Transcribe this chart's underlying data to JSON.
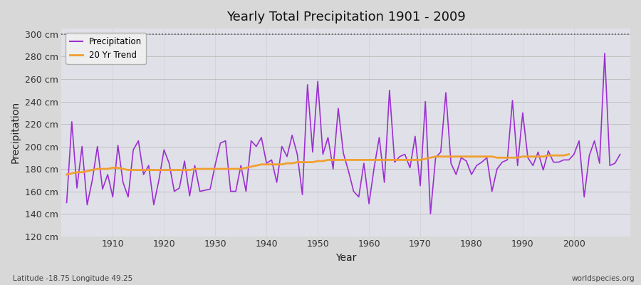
{
  "title": "Yearly Total Precipitation 1901 - 2009",
  "xlabel": "Year",
  "ylabel": "Precipitation",
  "footnote_left": "Latitude -18.75 Longitude 49.25",
  "footnote_right": "worldspecies.org",
  "precip_color": "#9b30d0",
  "trend_color": "#f0a030",
  "bg_color": "#d8d8d8",
  "plot_bg_color": "#e0e0e8",
  "ylim": [
    120,
    305
  ],
  "yticks": [
    120,
    140,
    160,
    180,
    200,
    220,
    240,
    260,
    280,
    300
  ],
  "xticks": [
    1910,
    1920,
    1930,
    1940,
    1950,
    1960,
    1970,
    1980,
    1990,
    2000
  ],
  "years": [
    1901,
    1902,
    1903,
    1904,
    1905,
    1906,
    1907,
    1908,
    1909,
    1910,
    1911,
    1912,
    1913,
    1914,
    1915,
    1916,
    1917,
    1918,
    1919,
    1920,
    1921,
    1922,
    1923,
    1924,
    1925,
    1926,
    1927,
    1928,
    1929,
    1930,
    1931,
    1932,
    1933,
    1934,
    1935,
    1936,
    1937,
    1938,
    1939,
    1940,
    1941,
    1942,
    1943,
    1944,
    1945,
    1946,
    1947,
    1948,
    1949,
    1950,
    1951,
    1952,
    1953,
    1954,
    1955,
    1956,
    1957,
    1958,
    1959,
    1960,
    1961,
    1962,
    1963,
    1964,
    1965,
    1966,
    1967,
    1968,
    1969,
    1970,
    1971,
    1972,
    1973,
    1974,
    1975,
    1976,
    1977,
    1978,
    1979,
    1980,
    1981,
    1982,
    1983,
    1984,
    1985,
    1986,
    1987,
    1988,
    1989,
    1990,
    1991,
    1992,
    1993,
    1994,
    1995,
    1996,
    1997,
    1998,
    1999,
    2000,
    2001,
    2002,
    2003,
    2004,
    2005,
    2006,
    2007,
    2008,
    2009
  ],
  "precip": [
    150,
    222,
    163,
    200,
    148,
    170,
    200,
    162,
    175,
    155,
    201,
    168,
    155,
    197,
    205,
    175,
    183,
    148,
    170,
    197,
    185,
    160,
    163,
    187,
    156,
    183,
    160,
    161,
    162,
    184,
    203,
    205,
    160,
    160,
    183,
    160,
    205,
    200,
    208,
    185,
    188,
    168,
    200,
    191,
    210,
    193,
    157,
    255,
    195,
    258,
    193,
    208,
    180,
    234,
    194,
    178,
    160,
    155,
    185,
    149,
    181,
    208,
    168,
    250,
    186,
    191,
    193,
    181,
    209,
    165,
    240,
    140,
    190,
    195,
    248,
    185,
    175,
    190,
    187,
    175,
    183,
    186,
    190,
    160,
    180,
    186,
    188,
    241,
    183,
    230,
    190,
    183,
    195,
    179,
    196,
    186,
    186,
    188,
    188,
    193,
    205,
    155,
    192,
    205,
    185,
    283,
    183,
    185,
    193
  ],
  "trend": [
    175,
    176,
    177,
    177,
    178,
    179,
    180,
    180,
    180,
    181,
    181,
    180,
    179,
    179,
    179,
    179,
    179,
    179,
    179,
    179,
    179,
    179,
    179,
    179,
    179,
    180,
    180,
    180,
    180,
    180,
    180,
    180,
    180,
    180,
    180,
    181,
    182,
    183,
    184,
    184,
    184,
    184,
    184,
    185,
    185,
    186,
    186,
    186,
    186,
    187,
    187,
    188,
    188,
    188,
    188,
    188,
    188,
    188,
    188,
    188,
    188,
    188,
    188,
    188,
    188,
    188,
    188,
    188,
    188,
    188,
    189,
    190,
    191,
    191,
    191,
    191,
    191,
    191,
    191,
    191,
    191,
    191,
    191,
    191,
    190,
    190,
    190,
    190,
    190,
    191,
    191,
    191,
    191,
    191,
    192,
    192,
    192,
    192,
    193
  ]
}
